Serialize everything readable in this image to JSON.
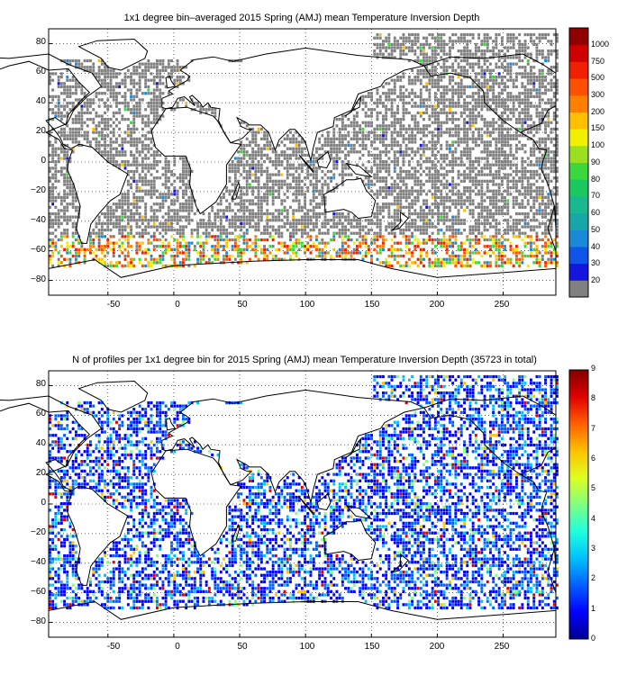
{
  "panels": [
    {
      "id": "top",
      "title": "1x1 degree bin–averaged 2015 Spring (AMJ) mean Temperature Inversion Depth",
      "x_ticks": [
        "-50",
        "0",
        "50",
        "100",
        "150",
        "200",
        "250"
      ],
      "y_ticks": [
        "80",
        "60",
        "40",
        "20",
        "0",
        "−20",
        "−40",
        "−60",
        "−80"
      ],
      "colorbar": {
        "labels": [
          "20",
          "30",
          "40",
          "50",
          "60",
          "70",
          "80",
          "90",
          "100",
          "150",
          "200",
          "300",
          "500",
          "750",
          "1000"
        ],
        "colors": [
          "#808080",
          "#1515e0",
          "#0f55e8",
          "#1a8ad8",
          "#16a8a8",
          "#18b890",
          "#1ac860",
          "#3ad83a",
          "#9ae020",
          "#f0f000",
          "#ffc000",
          "#ff8000",
          "#ff5000",
          "#f02000",
          "#d00000",
          "#900000"
        ]
      },
      "data_colors": {
        "mostly": "#808080",
        "southern_ocean": [
          "#ff8000",
          "#ff5000",
          "#f02000",
          "#ffc000",
          "#f0f000",
          "#3ad83a",
          "#1a8ad8"
        ]
      }
    },
    {
      "id": "bottom",
      "title": "N of profiles per 1x1 degree bin for 2015 Spring (AMJ) mean Temperature Inversion Depth  (35723 in total)",
      "x_ticks": [
        "-50",
        "0",
        "50",
        "100",
        "150",
        "200",
        "250"
      ],
      "y_ticks": [
        "80",
        "60",
        "40",
        "20",
        "0",
        "−20",
        "−40",
        "−60",
        "−80"
      ],
      "colorbar": {
        "labels": [
          "0",
          "1",
          "2",
          "3",
          "4",
          "5",
          "6",
          "7",
          "8",
          "9"
        ],
        "colors": [
          "#00008f",
          "#0000ff",
          "#0060ff",
          "#00c0ff",
          "#20ffdf",
          "#80ff80",
          "#dfff20",
          "#ffc000",
          "#ff6000",
          "#e00000",
          "#800000"
        ]
      },
      "data_colors": {
        "mostly": "#0044ff",
        "hotspots": [
          "#e00000",
          "#800000",
          "#ffc000"
        ]
      }
    }
  ],
  "chart_data": [
    {
      "type": "heatmap",
      "title": "1x1 degree bin–averaged 2015 Spring (AMJ) mean Temperature Inversion Depth",
      "xlim": [
        -95,
        290
      ],
      "ylim": [
        -90,
        90
      ],
      "x_ticks": [
        -50,
        0,
        50,
        100,
        150,
        200,
        250
      ],
      "y_ticks": [
        80,
        60,
        40,
        20,
        0,
        -20,
        -40,
        -60,
        -80
      ],
      "colorbar_ticks": [
        20,
        30,
        40,
        50,
        60,
        70,
        80,
        90,
        100,
        150,
        200,
        300,
        500,
        750,
        1000
      ],
      "grid": true
    },
    {
      "type": "heatmap",
      "title": "N of profiles per 1x1 degree bin for 2015 Spring (AMJ) mean Temperature Inversion Depth  (35723 in total)",
      "total_profiles": 35723,
      "xlim": [
        -95,
        290
      ],
      "ylim": [
        -90,
        90
      ],
      "x_ticks": [
        -50,
        0,
        50,
        100,
        150,
        200,
        250
      ],
      "y_ticks": [
        80,
        60,
        40,
        20,
        0,
        -20,
        -40,
        -60,
        -80
      ],
      "colorbar_ticks": [
        0,
        1,
        2,
        3,
        4,
        5,
        6,
        7,
        8,
        9
      ],
      "grid": true
    }
  ]
}
